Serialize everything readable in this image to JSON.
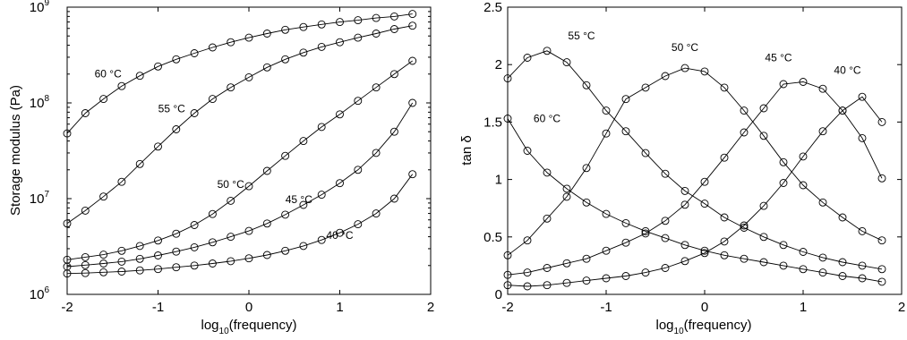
{
  "chart_data": [
    {
      "type": "line",
      "xlabel": {
        "pre": "log",
        "sub": "10",
        "post": "(frequency)"
      },
      "ylabel": "Storage modulus (Pa)",
      "xlim": [
        -2,
        2
      ],
      "ylim_log10": [
        6,
        9
      ],
      "y_scale": "log",
      "x_ticks": [
        "-2",
        "-1",
        "0",
        "1",
        "2"
      ],
      "y_ticks": [
        {
          "base": "10",
          "exp": "6"
        },
        {
          "base": "10",
          "exp": "7"
        },
        {
          "base": "10",
          "exp": "8"
        },
        {
          "base": "10",
          "exp": "9"
        }
      ],
      "x": [
        -2.0,
        -1.8,
        -1.6,
        -1.4,
        -1.2,
        -1.0,
        -0.8,
        -0.6,
        -0.4,
        -0.2,
        0.0,
        0.2,
        0.4,
        0.6,
        0.8,
        1.0,
        1.2,
        1.4,
        1.6,
        1.8
      ],
      "series": [
        {
          "name": "60 °C",
          "values": [
            48000000.0,
            78000000.0,
            110000000.0,
            150000000.0,
            192000000.0,
            240000000.0,
            285000000.0,
            330000000.0,
            380000000.0,
            430000000.0,
            480000000.0,
            530000000.0,
            580000000.0,
            620000000.0,
            660000000.0,
            700000000.0,
            730000000.0,
            770000000.0,
            800000000.0,
            850000000.0
          ]
        },
        {
          "name": "55 °C",
          "values": [
            5500000.0,
            7500000.0,
            10500000.0,
            15000000.0,
            23000000.0,
            35000000.0,
            53000000.0,
            78000000.0,
            110000000.0,
            145000000.0,
            185000000.0,
            235000000.0,
            285000000.0,
            335000000.0,
            385000000.0,
            430000000.0,
            480000000.0,
            530000000.0,
            590000000.0,
            640000000.0
          ]
        },
        {
          "name": "50 °C",
          "values": [
            2300000.0,
            2450000.0,
            2600000.0,
            2850000.0,
            3200000.0,
            3650000.0,
            4300000.0,
            5300000.0,
            6900000.0,
            9500000.0,
            13500000.0,
            19500000.0,
            28000000.0,
            40000000.0,
            56000000.0,
            76000000.0,
            105000000.0,
            145000000.0,
            200000000.0,
            275000000.0
          ]
        },
        {
          "name": "45 °C",
          "values": [
            1950000.0,
            2020000.0,
            2100000.0,
            2200000.0,
            2350000.0,
            2550000.0,
            2800000.0,
            3100000.0,
            3500000.0,
            4000000.0,
            4600000.0,
            5500000.0,
            6800000.0,
            8600000.0,
            11000000.0,
            14500000.0,
            20000000.0,
            30000000.0,
            50000000.0,
            100000000.0
          ]
        },
        {
          "name": "40 °C",
          "values": [
            1650000.0,
            1670000.0,
            1700000.0,
            1730000.0,
            1780000.0,
            1840000.0,
            1920000.0,
            2000000.0,
            2100000.0,
            2220000.0,
            2380000.0,
            2580000.0,
            2850000.0,
            3200000.0,
            3700000.0,
            4400000.0,
            5400000.0,
            7000000.0,
            10000000.0,
            18000000.0
          ]
        }
      ]
    },
    {
      "type": "line",
      "xlabel": {
        "pre": "log",
        "sub": "10",
        "post": "(frequency)"
      },
      "ylabel": "tan δ",
      "xlim": [
        -2,
        2
      ],
      "ylim": [
        0,
        2.5
      ],
      "x_ticks": [
        "-2",
        "-1",
        "0",
        "1",
        "2"
      ],
      "y_ticks": [
        "0",
        "0.5",
        "1",
        "1.5",
        "2",
        "2.5"
      ],
      "x": [
        -2.0,
        -1.8,
        -1.6,
        -1.4,
        -1.2,
        -1.0,
        -0.8,
        -0.6,
        -0.4,
        -0.2,
        0.0,
        0.2,
        0.4,
        0.6,
        0.8,
        1.0,
        1.2,
        1.4,
        1.6,
        1.8
      ],
      "series": [
        {
          "name": "60 °C",
          "values": [
            1.53,
            1.25,
            1.06,
            0.92,
            0.8,
            0.7,
            0.62,
            0.55,
            0.49,
            0.43,
            0.38,
            0.34,
            0.31,
            0.28,
            0.25,
            0.22,
            0.19,
            0.16,
            0.14,
            0.11
          ]
        },
        {
          "name": "55 °C",
          "values": [
            1.88,
            2.06,
            2.12,
            2.02,
            1.82,
            1.6,
            1.42,
            1.23,
            1.05,
            0.9,
            0.79,
            0.67,
            0.58,
            0.5,
            0.43,
            0.37,
            0.32,
            0.28,
            0.25,
            0.22
          ]
        },
        {
          "name": "50 °C",
          "values": [
            0.34,
            0.47,
            0.66,
            0.85,
            1.1,
            1.4,
            1.7,
            1.8,
            1.9,
            1.97,
            1.94,
            1.8,
            1.6,
            1.38,
            1.15,
            0.95,
            0.8,
            0.67,
            0.55,
            0.47
          ]
        },
        {
          "name": "45 °C",
          "values": [
            0.17,
            0.19,
            0.23,
            0.27,
            0.31,
            0.38,
            0.45,
            0.53,
            0.64,
            0.78,
            0.98,
            1.19,
            1.41,
            1.62,
            1.83,
            1.85,
            1.79,
            1.6,
            1.36,
            1.01
          ]
        },
        {
          "name": "40 °C",
          "values": [
            0.08,
            0.07,
            0.08,
            0.1,
            0.12,
            0.14,
            0.16,
            0.19,
            0.23,
            0.29,
            0.36,
            0.46,
            0.6,
            0.77,
            0.97,
            1.2,
            1.42,
            1.6,
            1.72,
            1.5
          ]
        }
      ]
    }
  ],
  "annotations": {
    "left": [
      {
        "text": "60 °C",
        "series": "60 °C",
        "x": -1.55,
        "y": 185000000.0
      },
      {
        "text": "55 °C",
        "series": "55 °C",
        "x": -0.85,
        "y": 80000000.0
      },
      {
        "text": "50 °C",
        "series": "50 °C",
        "x": -0.2,
        "y": 13000000.0
      },
      {
        "text": "45 °C",
        "series": "45 °C",
        "x": 0.55,
        "y": 9000000.0
      },
      {
        "text": "40 °C",
        "series": "40 °C",
        "x": 1.0,
        "y": 3800000.0
      }
    ],
    "right": [
      {
        "text": "55 °C",
        "series": "55 °C",
        "x": -1.25,
        "y": 2.22
      },
      {
        "text": "50 °C",
        "series": "50 °C",
        "x": -0.2,
        "y": 2.12
      },
      {
        "text": "45 °C",
        "series": "45 °C",
        "x": 0.75,
        "y": 2.03
      },
      {
        "text": "40 °C",
        "series": "40 °C",
        "x": 1.45,
        "y": 1.92
      },
      {
        "text": "60 °C",
        "series": "60 °C",
        "x": -1.6,
        "y": 1.5
      }
    ]
  }
}
